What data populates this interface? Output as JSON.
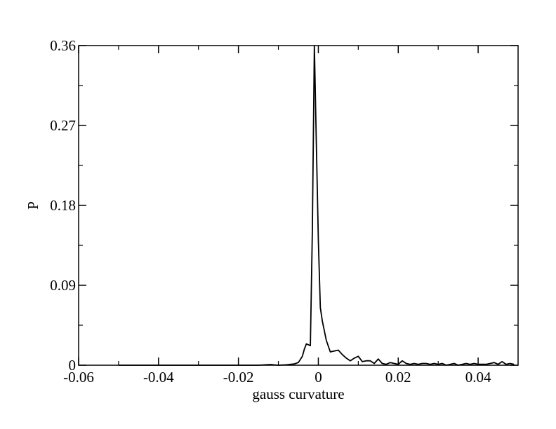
{
  "chart_data": {
    "type": "line",
    "title": "",
    "xlabel": "gauss curvature",
    "ylabel": "P",
    "xlim": [
      -0.06,
      0.05
    ],
    "ylim": [
      0,
      0.36
    ],
    "xticks": [
      -0.06,
      -0.04,
      -0.02,
      0,
      0.02,
      0.04
    ],
    "xtick_labels": [
      "-0.06",
      "-0.04",
      "-0.02",
      "0",
      "0.02",
      "0.04"
    ],
    "yticks": [
      0,
      0.09,
      0.18,
      0.27,
      0.36
    ],
    "ytick_labels": [
      "0",
      "0.09",
      "0.18",
      "0.27",
      "0.36"
    ],
    "x_minor_step": 0.01,
    "y_minor_step": 0.045,
    "grid": false,
    "legend": "none",
    "line_color": "#000000",
    "series": [
      {
        "x": [
          -0.05,
          -0.045,
          -0.04,
          -0.035,
          -0.03,
          -0.025,
          -0.02,
          -0.015,
          -0.012,
          -0.01,
          -0.008,
          -0.006,
          -0.005,
          -0.004,
          -0.0035,
          -0.003,
          -0.002,
          -0.0015,
          -0.001,
          -0.0005,
          0,
          0.0005,
          0.001,
          0.002,
          0.003,
          0.004,
          0.005,
          0.006,
          0.007,
          0.008,
          0.009,
          0.01,
          0.011,
          0.012,
          0.013,
          0.014,
          0.015,
          0.016,
          0.017,
          0.018,
          0.019,
          0.02,
          0.021,
          0.022,
          0.023,
          0.024,
          0.025,
          0.026,
          0.027,
          0.028,
          0.029,
          0.03,
          0.031,
          0.032,
          0.033,
          0.034,
          0.035,
          0.036,
          0.037,
          0.038,
          0.039,
          0.04,
          0.041,
          0.042,
          0.043,
          0.044,
          0.045,
          0.046,
          0.047,
          0.048,
          0.049
        ],
        "y": [
          0,
          0,
          0,
          0,
          0,
          0,
          0,
          0,
          0.0008,
          0,
          0.0005,
          0.0015,
          0.003,
          0.01,
          0.018,
          0.024,
          0.022,
          0.15,
          0.36,
          0.25,
          0.14,
          0.065,
          0.05,
          0.028,
          0.015,
          0.016,
          0.017,
          0.012,
          0.008,
          0.005,
          0.008,
          0.01,
          0.004,
          0.005,
          0.005,
          0.002,
          0.007,
          0.002,
          0.001,
          0.003,
          0.002,
          0.001,
          0.005,
          0.002,
          0.001,
          0.002,
          0.001,
          0.002,
          0.002,
          0.001,
          0.002,
          0.001,
          0.002,
          0,
          0.001,
          0.002,
          0,
          0.001,
          0.002,
          0.001,
          0.002,
          0.001,
          0.001,
          0.001,
          0.002,
          0.003,
          0.001,
          0.004,
          0.001,
          0.002,
          0.001
        ]
      }
    ]
  }
}
